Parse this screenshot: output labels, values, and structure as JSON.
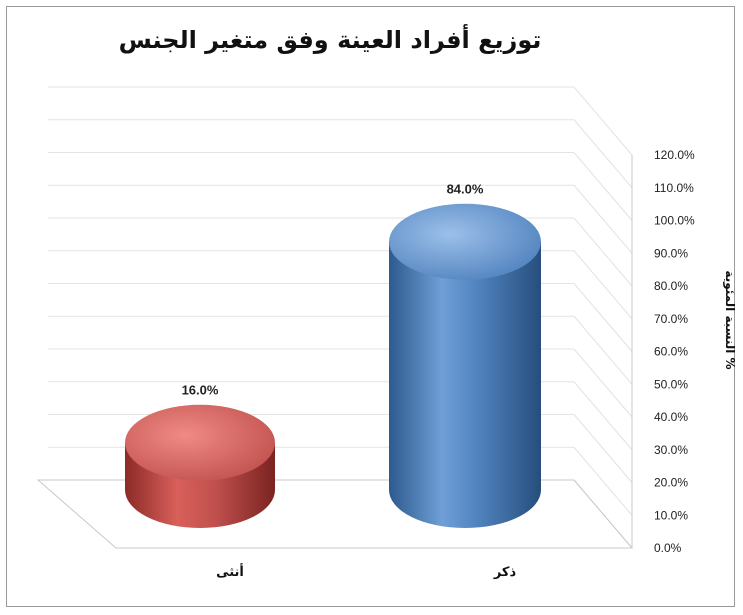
{
  "chart_data": {
    "type": "bar",
    "title": "توزيع أفراد العينة وفق متغير الجنس",
    "xlabel": "",
    "ylabel": "النسبة المئوية %",
    "categories": [
      "أنثى",
      "ذكر"
    ],
    "values": [
      16.0,
      84.0
    ],
    "data_labels": [
      "16.0%",
      "84.0%"
    ],
    "ylim": [
      0,
      120
    ],
    "yticks": [
      "0.0%",
      "10.0%",
      "20.0%",
      "30.0%",
      "40.0%",
      "50.0%",
      "60.0%",
      "70.0%",
      "80.0%",
      "90.0%",
      "100.0%",
      "110.0%",
      "120.0%"
    ],
    "bar_shape": "cylinder",
    "colors": [
      "#c0504d",
      "#4f81bd"
    ],
    "grid": true,
    "legend": "none"
  }
}
